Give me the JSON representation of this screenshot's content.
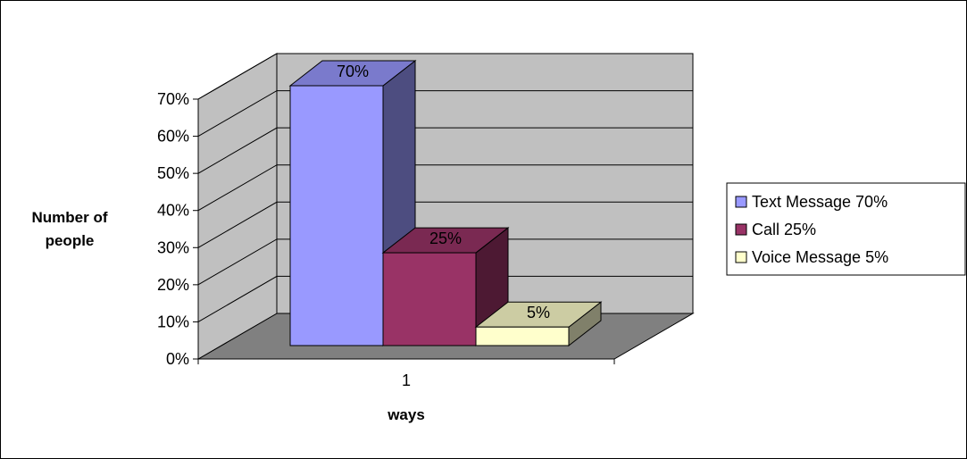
{
  "chart_data": {
    "type": "bar",
    "categories": [
      "1"
    ],
    "series": [
      {
        "name": "Text Message 70%",
        "values": [
          70
        ],
        "label": "70%",
        "color": "#9999ff",
        "side_color": "#4d4d80",
        "top_color": "#7a7acc"
      },
      {
        "name": "Call 25%",
        "values": [
          25
        ],
        "label": "25%",
        "color": "#993366",
        "side_color": "#4d1933",
        "top_color": "#7a2952"
      },
      {
        "name": "Voice Message 5%",
        "values": [
          5
        ],
        "label": "5%",
        "color": "#ffffcc",
        "side_color": "#80806a",
        "top_color": "#cccca3"
      }
    ],
    "xlabel": "ways",
    "ylabel_line1": "Number of",
    "ylabel_line2": "people",
    "ylim": [
      0,
      70
    ],
    "yticks": [
      "0%",
      "10%",
      "20%",
      "30%",
      "40%",
      "50%",
      "60%",
      "70%"
    ],
    "grid": true,
    "legend_position": "right",
    "colors": {
      "wall": "#c0c0c0",
      "floor": "#808080",
      "gridline": "#000000"
    }
  }
}
